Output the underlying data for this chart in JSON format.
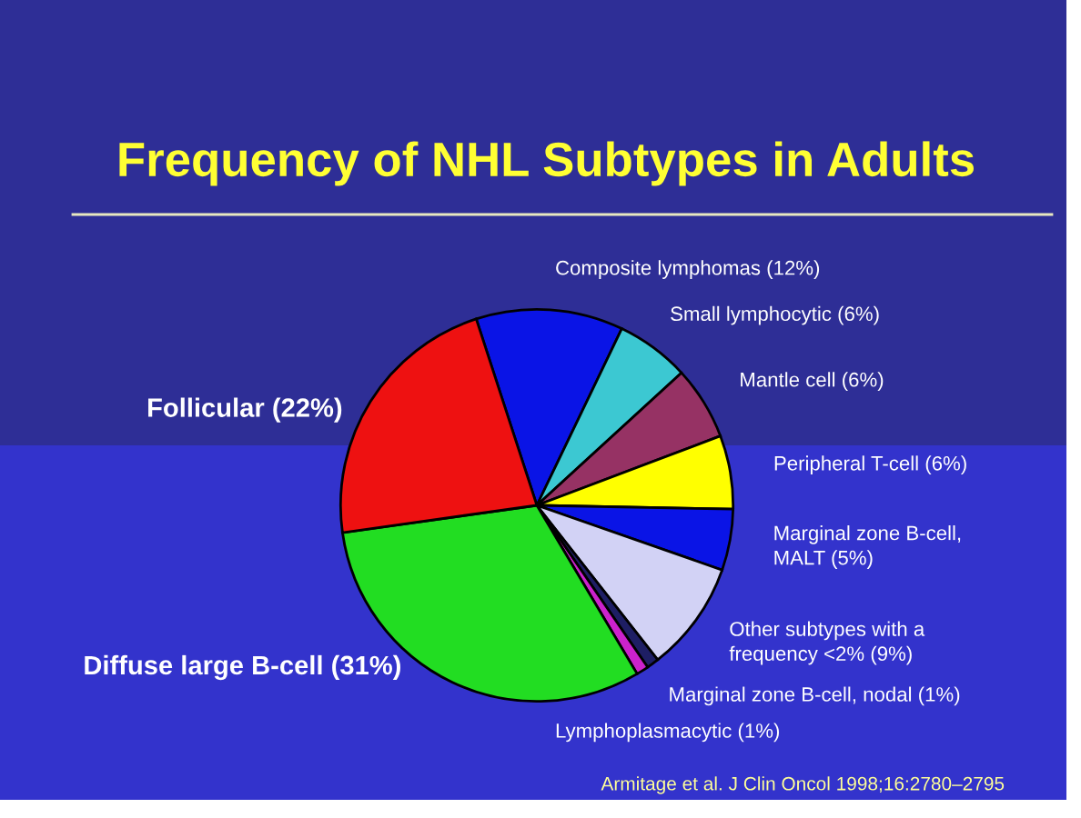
{
  "chart_data": {
    "type": "pie",
    "title": "Frequency of NHL Subtypes in Adults",
    "categories": [
      "Composite lymphomas (12%)",
      "Small lymphocytic (6%)",
      "Mantle cell (6%)",
      "Peripheral T-cell (6%)",
      "Marginal zone B-cell,\nMALT (5%)",
      "Other subtypes with a\nfrequency <2% (9%)",
      "Marginal zone B-cell, nodal (1%)",
      "Lymphoplasmacytic (1%)",
      "Diffuse large B-cell (31%)",
      "Follicular (22%)"
    ],
    "values": [
      12,
      6,
      6,
      6,
      5,
      9,
      1,
      1,
      31,
      22
    ],
    "colors": [
      "#0a14e6",
      "#3cc8d2",
      "#963264",
      "#ffff00",
      "#0a14e6",
      "#d2d2f5",
      "#1e1e64",
      "#cc22cc",
      "#22dd22",
      "#ee1111"
    ],
    "annotations": [
      "Armitage et al. J Clin Oncol 1998;16:2780–2795"
    ]
  }
}
